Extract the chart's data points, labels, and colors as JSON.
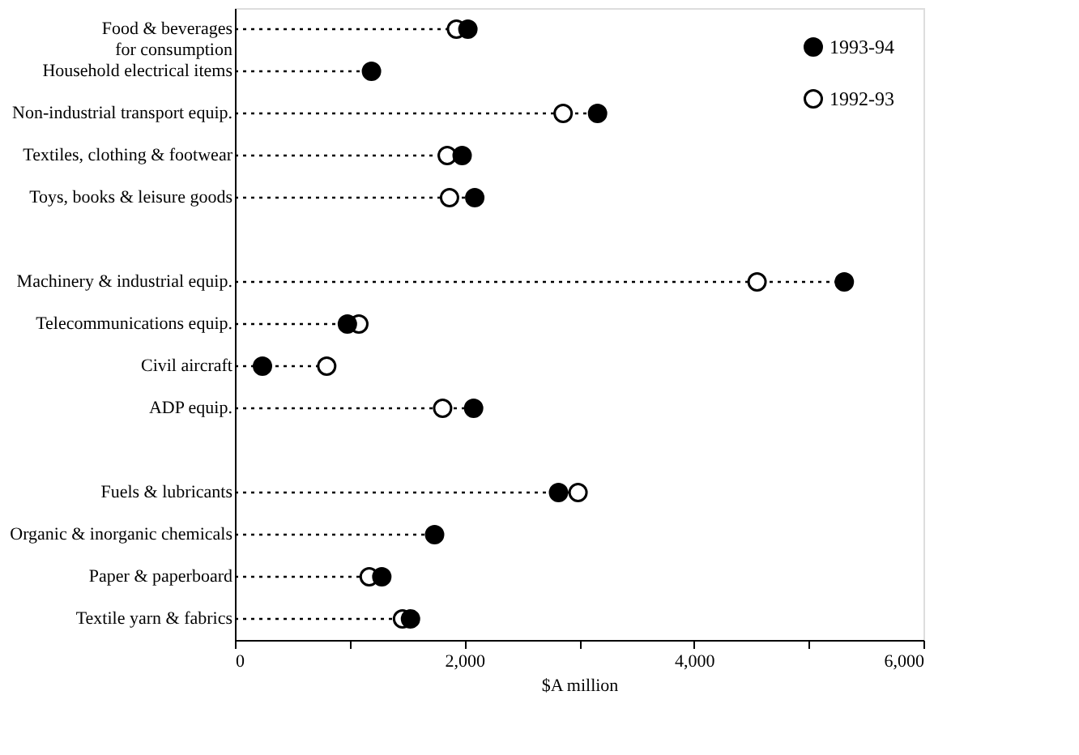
{
  "chart_data": {
    "type": "lollipop",
    "orientation": "horizontal",
    "categories": [
      "Food & beverages\nfor consumption",
      "Household electrical items",
      "Non-industrial transport equip.",
      "Textiles, clothing & footwear",
      "Toys, books & leisure goods",
      null,
      "Machinery & industrial equip.",
      "Telecommunications equip.",
      "Civil aircraft",
      "ADP equip.",
      null,
      "Fuels & lubricants",
      "Organic & inorganic chemicals",
      "Paper & paperboard",
      "Textile yarn & fabrics"
    ],
    "series": [
      {
        "name": "1993-94",
        "color": "#000000",
        "values": [
          2030,
          1190,
          3160,
          1980,
          2090,
          null,
          5310,
          980,
          240,
          2080,
          null,
          2820,
          1740,
          1280,
          1530
        ]
      },
      {
        "name": "1992-93",
        "color": "#ffffff",
        "values": [
          1930,
          null,
          2860,
          1850,
          1870,
          null,
          4550,
          1080,
          800,
          1810,
          null,
          2990,
          null,
          1170,
          1460
        ]
      }
    ],
    "xlim": [
      0,
      6000
    ],
    "xticks": [
      0,
      {
        "value": 1000,
        "label": null
      },
      {
        "value": 2000,
        "label": "2,000"
      },
      {
        "value": 3000,
        "label": null
      },
      {
        "value": 4000,
        "label": "4,000"
      },
      {
        "value": 5000,
        "label": null
      },
      {
        "value": 6000,
        "label": "6,000"
      }
    ],
    "xlabel": "$A million",
    "marker": "circle",
    "line_style": "dotted",
    "legend": "top right"
  }
}
